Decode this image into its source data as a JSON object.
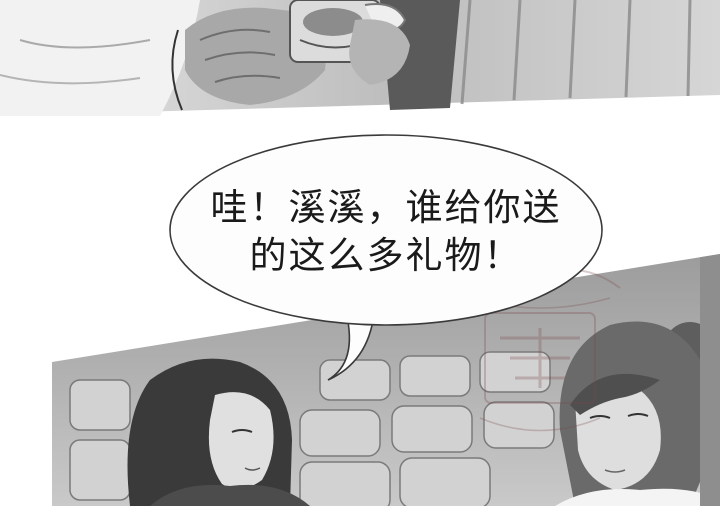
{
  "speech_bubble": {
    "line1": "哇！溪溪，谁给你送",
    "line2": "的这么多礼物！"
  },
  "panels": {
    "top": {
      "description_icon": "hands-holding-gift-icon"
    },
    "bottom": {
      "description_icon": "two-girls-auditorium-icon"
    }
  },
  "colors": {
    "background": "#ffffff",
    "bubble_fill": "#fdfdfd",
    "bubble_stroke": "#3a3a3a",
    "panel_dark": "#4a4a4a",
    "panel_mid": "#9a9a9a",
    "panel_light": "#d8d8d8"
  }
}
